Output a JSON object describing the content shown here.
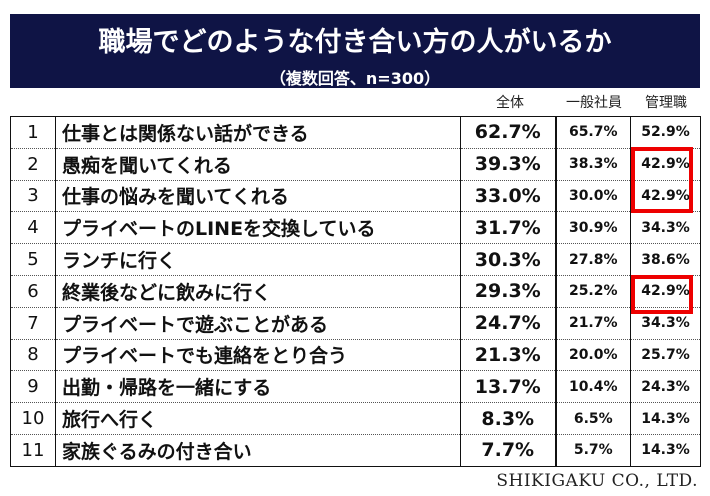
{
  "header": {
    "title": "職場でどのような付き合い方の人がいるか",
    "subtitle": "（複数回答、n=300）"
  },
  "columns": {
    "total": "全体",
    "general": "一般社員",
    "manager": "管理職"
  },
  "rows": [
    {
      "num": "1",
      "label": "仕事とは関係ない話ができる",
      "total": "62.7%",
      "general": "65.7%",
      "manager": "52.9%"
    },
    {
      "num": "2",
      "label": "愚痴を聞いてくれる",
      "total": "39.3%",
      "general": "38.3%",
      "manager": "42.9%"
    },
    {
      "num": "3",
      "label": "仕事の悩みを聞いてくれる",
      "total": "33.0%",
      "general": "30.0%",
      "manager": "42.9%"
    },
    {
      "num": "4",
      "label": "プライベートのLINEを交換している",
      "total": "31.7%",
      "general": "30.9%",
      "manager": "34.3%"
    },
    {
      "num": "5",
      "label": "ランチに行く",
      "total": "30.3%",
      "general": "27.8%",
      "manager": "38.6%"
    },
    {
      "num": "6",
      "label": "終業後などに飲みに行く",
      "total": "29.3%",
      "general": "25.2%",
      "manager": "42.9%"
    },
    {
      "num": "7",
      "label": "プライベートで遊ぶことがある",
      "total": "24.7%",
      "general": "21.7%",
      "manager": "34.3%"
    },
    {
      "num": "8",
      "label": "プライベートでも連絡をとり合う",
      "total": "21.3%",
      "general": "20.0%",
      "manager": "25.7%"
    },
    {
      "num": "9",
      "label": "出勤・帰路を一緒にする",
      "total": "13.7%",
      "general": "10.4%",
      "manager": "24.3%"
    },
    {
      "num": "10",
      "label": "旅行へ行く",
      "total": "8.3%",
      "general": "6.5%",
      "manager": "14.3%"
    },
    {
      "num": "11",
      "label": "家族ぐるみの付き合い",
      "total": "7.7%",
      "general": "5.7%",
      "manager": "14.3%"
    }
  ],
  "footer": "SHIKIGAKU CO., LTD.",
  "colors": {
    "header_bg": "#0f1445",
    "highlight": "#e00000"
  }
}
